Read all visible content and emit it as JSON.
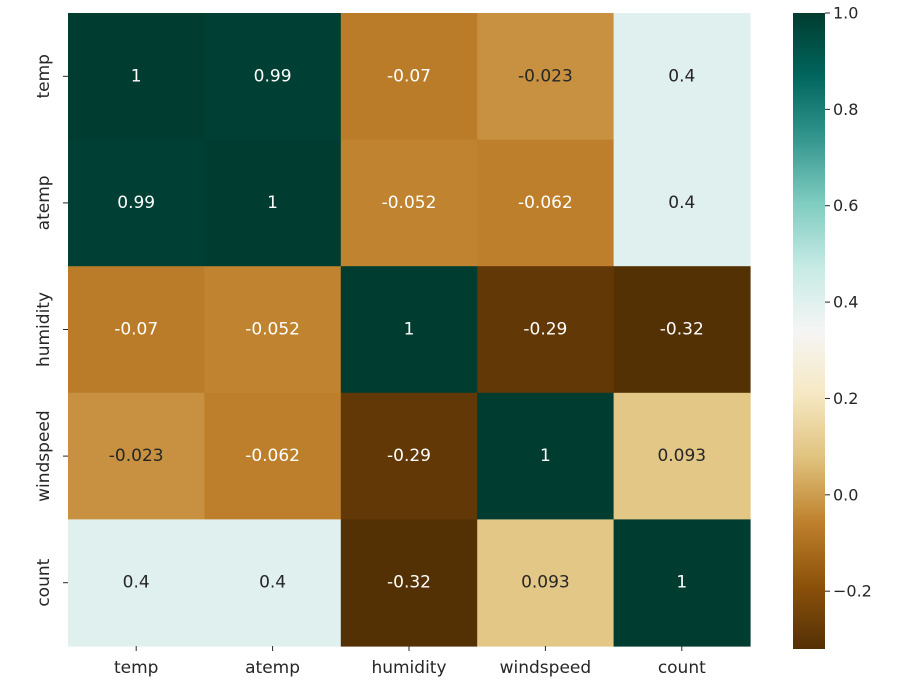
{
  "chart_data": {
    "type": "heatmap",
    "title": "",
    "xlabel": "",
    "ylabel": "",
    "x_labels": [
      "temp",
      "atemp",
      "humidity",
      "windspeed",
      "count"
    ],
    "y_labels": [
      "temp",
      "atemp",
      "humidity",
      "windspeed",
      "count"
    ],
    "matrix": [
      [
        1,
        0.99,
        -0.07,
        -0.023,
        0.4
      ],
      [
        0.99,
        1,
        -0.052,
        -0.062,
        0.4
      ],
      [
        -0.07,
        -0.052,
        1,
        -0.29,
        -0.32
      ],
      [
        -0.023,
        -0.062,
        -0.29,
        1,
        0.093
      ],
      [
        0.4,
        0.4,
        -0.32,
        0.093,
        1
      ]
    ],
    "cell_text": [
      [
        "1",
        "0.99",
        "-0.07",
        "-0.023",
        "0.4"
      ],
      [
        "0.99",
        "1",
        "-0.052",
        "-0.062",
        "0.4"
      ],
      [
        "-0.07",
        "-0.052",
        "1",
        "-0.29",
        "-0.32"
      ],
      [
        "-0.023",
        "-0.062",
        "-0.29",
        "1",
        "0.093"
      ],
      [
        "0.4",
        "0.4",
        "-0.32",
        "0.093",
        "1"
      ]
    ],
    "colormap": "BrBG",
    "vmin": -0.32,
    "vmax": 1.0,
    "colorbar_ticks": [
      1.0,
      0.8,
      0.6,
      0.4,
      0.2,
      0.0,
      -0.2
    ],
    "colorbar_tick_labels": [
      "1.0",
      "0.8",
      "0.6",
      "0.4",
      "0.2",
      "0.0",
      "−0.2"
    ],
    "legend": "colorbar-right"
  }
}
